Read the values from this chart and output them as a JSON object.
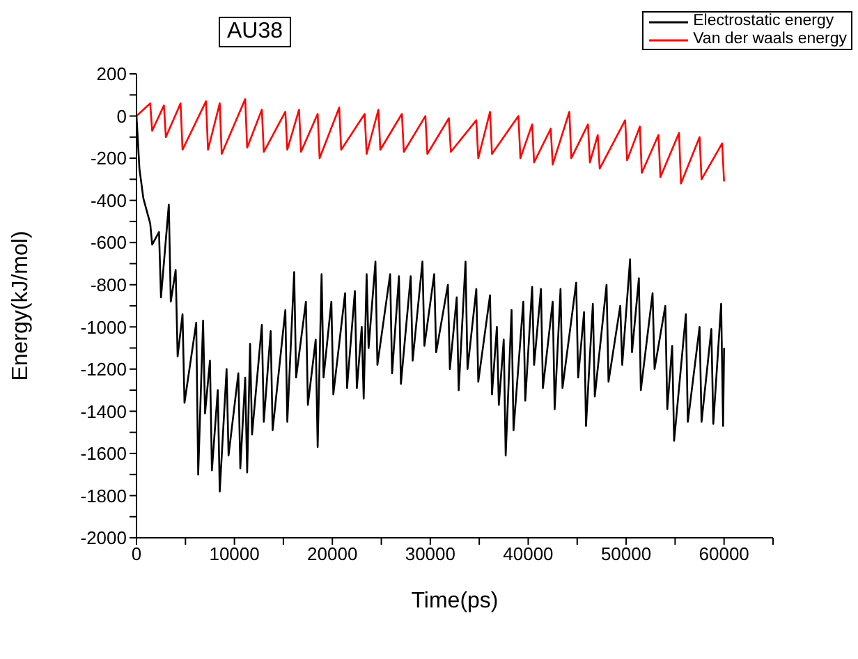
{
  "chart_data": {
    "type": "line",
    "title": "AU38",
    "xlabel": "Time(ps)",
    "ylabel": "Energy(kJ/mol)",
    "xlim": [
      0,
      65000
    ],
    "ylim": [
      -2000,
      200
    ],
    "xticks": [
      0,
      {
        "value": 5000,
        "label": null
      },
      10000,
      {
        "value": 15000,
        "label": null
      },
      20000,
      {
        "value": 25000,
        "label": null
      },
      30000,
      {
        "value": 35000,
        "label": null
      },
      40000,
      {
        "value": 45000,
        "label": null
      },
      50000,
      {
        "value": 55000,
        "label": null
      },
      60000,
      {
        "value": 65000,
        "label": null
      }
    ],
    "yticks": [
      -2000,
      {
        "value": -1900,
        "label": null
      },
      -1800,
      {
        "value": -1700,
        "label": null
      },
      -1600,
      {
        "value": -1500,
        "label": null
      },
      -1400,
      {
        "value": -1300,
        "label": null
      },
      -1200,
      {
        "value": -1100,
        "label": null
      },
      -1000,
      {
        "value": -900,
        "label": null
      },
      -800,
      {
        "value": -700,
        "label": null
      },
      -600,
      {
        "value": -500,
        "label": null
      },
      -400,
      {
        "value": -300,
        "label": null
      },
      -200,
      {
        "value": -100,
        "label": null
      },
      0,
      {
        "value": 100,
        "label": null
      },
      200
    ],
    "grid": false,
    "legend": "top right",
    "marker": "none",
    "line_style": "solid",
    "series": [
      {
        "name": "Electrostatic energy",
        "color": "#000000",
        "x": [
          0,
          300,
          700,
          1400,
          1600,
          2300,
          2500,
          3300,
          3500,
          4000,
          4200,
          4700,
          4900,
          6100,
          6300,
          6800,
          7000,
          7500,
          7700,
          8300,
          8500,
          9200,
          9400,
          10400,
          10600,
          11100,
          11300,
          11600,
          11800,
          12800,
          13000,
          13700,
          13900,
          15200,
          15400,
          16100,
          16300,
          17300,
          17500,
          18300,
          18500,
          18900,
          19100,
          19900,
          20100,
          21300,
          21500,
          22300,
          22500,
          23000,
          23200,
          23500,
          23700,
          24400,
          24600,
          25900,
          26100,
          26800,
          27000,
          28000,
          28200,
          29200,
          29400,
          30400,
          30600,
          31800,
          32000,
          32700,
          32900,
          33600,
          33800,
          34700,
          34900,
          36100,
          36300,
          36800,
          37000,
          37500,
          37700,
          38300,
          38500,
          39500,
          39700,
          40400,
          40600,
          41300,
          41500,
          42500,
          42700,
          43300,
          43500,
          44900,
          45100,
          45700,
          45900,
          46600,
          46800,
          48000,
          48200,
          49400,
          49600,
          50400,
          50600,
          51300,
          51500,
          52700,
          52900,
          54000,
          54200,
          54700,
          54900,
          56100,
          56300,
          57500,
          57700,
          58700,
          58900,
          59700,
          59900,
          60000
        ],
        "values": [
          0,
          -250,
          -390,
          -510,
          -610,
          -550,
          -860,
          -420,
          -880,
          -730,
          -1140,
          -940,
          -1360,
          -980,
          -1700,
          -970,
          -1410,
          -1160,
          -1680,
          -1300,
          -1780,
          -1200,
          -1610,
          -1220,
          -1670,
          -1240,
          -1690,
          -1080,
          -1510,
          -990,
          -1450,
          -1020,
          -1490,
          -920,
          -1450,
          -740,
          -1240,
          -880,
          -1370,
          -1060,
          -1570,
          -750,
          -1240,
          -880,
          -1320,
          -840,
          -1290,
          -830,
          -1290,
          -1000,
          -1340,
          -750,
          -1100,
          -690,
          -1180,
          -750,
          -1220,
          -760,
          -1270,
          -760,
          -1160,
          -690,
          -1090,
          -750,
          -1120,
          -800,
          -1200,
          -860,
          -1300,
          -690,
          -1200,
          -820,
          -1260,
          -850,
          -1320,
          -1000,
          -1370,
          -1060,
          -1610,
          -920,
          -1490,
          -880,
          -1350,
          -810,
          -1180,
          -820,
          -1290,
          -880,
          -1390,
          -820,
          -1290,
          -790,
          -1240,
          -930,
          -1470,
          -890,
          -1330,
          -800,
          -1260,
          -900,
          -1180,
          -680,
          -1120,
          -770,
          -1300,
          -840,
          -1200,
          -900,
          -1390,
          -1090,
          -1540,
          -940,
          -1450,
          -1000,
          -1450,
          -1010,
          -1460,
          -890,
          -1470,
          -1100
        ]
      },
      {
        "name": "Van der waals energy",
        "color": "#ff0000",
        "x": [
          0,
          1400,
          1600,
          2800,
          3000,
          4500,
          4700,
          7100,
          7300,
          8500,
          8700,
          11100,
          11300,
          12800,
          13000,
          15200,
          15400,
          16600,
          16800,
          18500,
          18700,
          20700,
          20900,
          23300,
          23500,
          24700,
          24900,
          27100,
          27300,
          29500,
          29700,
          31900,
          32100,
          34700,
          34900,
          36100,
          36300,
          39000,
          39200,
          40400,
          40600,
          42300,
          42500,
          44200,
          44400,
          46100,
          46300,
          47100,
          47300,
          49900,
          50100,
          51400,
          51600,
          53300,
          53500,
          55400,
          55600,
          57500,
          57700,
          59800,
          60000
        ],
        "values": [
          0,
          60,
          -70,
          50,
          -100,
          60,
          -160,
          70,
          -160,
          60,
          -180,
          80,
          -150,
          30,
          -170,
          20,
          -160,
          30,
          -170,
          10,
          -200,
          40,
          -160,
          10,
          -180,
          30,
          -160,
          10,
          -170,
          0,
          -180,
          -10,
          -170,
          -20,
          -200,
          20,
          -180,
          0,
          -200,
          -40,
          -220,
          -60,
          -230,
          20,
          -200,
          -40,
          -220,
          -90,
          -250,
          -20,
          -210,
          -50,
          -270,
          -90,
          -290,
          -80,
          -320,
          -100,
          -300,
          -130,
          -310
        ]
      }
    ]
  }
}
